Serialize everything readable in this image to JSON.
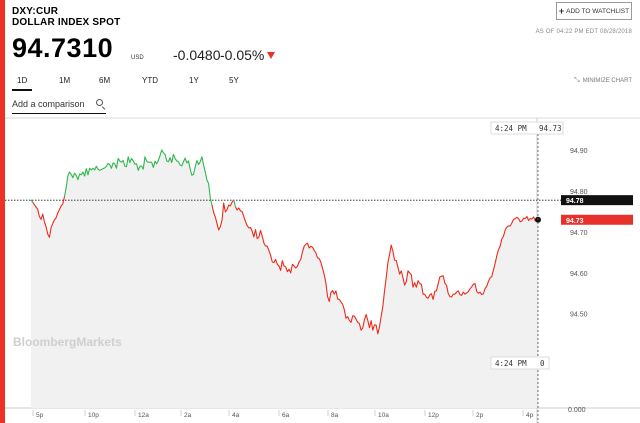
{
  "header": {
    "ticker": "DXY:CUR",
    "instrument_name": "DOLLAR INDEX SPOT",
    "watchlist_button": "ADD TO WATCHLIST",
    "price": "94.7310",
    "currency": "USD",
    "change": "-0.0480",
    "change_percent": "-0.05%",
    "as_of": "AS OF 04:22 PM EDT 08/28/2018"
  },
  "tabs": [
    {
      "label": "1D",
      "active": true
    },
    {
      "label": "1M",
      "active": false
    },
    {
      "label": "6M",
      "active": false
    },
    {
      "label": "YTD",
      "active": false
    },
    {
      "label": "1Y",
      "active": false
    },
    {
      "label": "5Y",
      "active": false
    }
  ],
  "minimize_label": "MINIMIZE CHART",
  "compare": {
    "label": "Add a comparison"
  },
  "watermark": "BloombergMarkets",
  "colors": {
    "accent": "#ee3124",
    "up": "#2db84b",
    "down": "#ee2a1b",
    "last_value_box": "#e8312a",
    "prev_close_box": "#111111"
  },
  "icons": {
    "watchlist": "plus-icon",
    "compare": "search-icon",
    "minimize": "minimize-icon",
    "change": "down-arrow-icon"
  },
  "chart_data": {
    "type": "line",
    "title": "",
    "xlabel": "",
    "ylabel": "",
    "x_ticks": [
      "5p",
      "10p",
      "12a",
      "2a",
      "4a",
      "6a",
      "8a",
      "10a",
      "12p",
      "2p",
      "4p"
    ],
    "y_ticks": [
      "94.90",
      "94.80",
      "94.70",
      "94.60",
      "94.50"
    ],
    "volume_axis_label": "0.000",
    "ylim": [
      94.405,
      94.98
    ],
    "previous_close": 94.779,
    "previous_close_label": "94.78",
    "last_value": 94.731,
    "last_value_label": "94.73",
    "crosshair_time": "4:24 PM",
    "crosshair_price": "94.73",
    "crosshair_volume": "0",
    "series": [
      {
        "values": [
          94.78,
          94.774,
          94.768,
          94.762,
          94.757,
          94.739,
          94.732,
          94.745,
          94.726,
          94.714,
          94.696,
          94.688,
          94.712,
          94.722,
          94.731,
          94.736,
          94.748,
          94.756,
          94.765,
          94.77,
          94.788,
          94.81,
          94.838,
          94.848,
          94.842,
          94.834,
          94.845,
          94.84,
          94.829,
          94.843,
          94.841,
          94.848,
          94.838,
          94.856,
          94.841,
          94.857,
          94.853,
          94.857,
          94.853,
          94.862,
          94.855,
          94.852,
          94.854,
          94.856,
          94.858,
          94.862,
          94.869,
          94.866,
          94.857,
          94.87,
          94.868,
          94.857,
          94.881,
          94.875,
          94.872,
          94.876,
          94.862,
          94.861,
          94.885,
          94.871,
          94.881,
          94.875,
          94.867,
          94.868,
          94.852,
          94.862,
          94.862,
          94.855,
          94.885,
          94.875,
          94.872,
          94.872,
          94.872,
          94.859,
          94.874,
          94.868,
          94.876,
          94.888,
          94.902,
          94.895,
          94.891,
          94.875,
          94.873,
          94.883,
          94.871,
          94.891,
          94.881,
          94.875,
          94.873,
          94.865,
          94.863,
          94.873,
          94.882,
          94.87,
          94.875,
          94.855,
          94.84,
          94.842,
          94.86,
          94.876,
          94.866,
          94.873,
          94.885,
          94.865,
          94.848,
          94.828,
          94.82,
          94.785,
          94.767,
          94.749,
          94.738,
          94.722,
          94.706,
          94.714,
          94.73,
          94.772,
          94.75,
          94.756,
          94.767,
          94.765,
          94.774,
          94.78,
          94.763,
          94.755,
          94.76,
          94.753,
          94.751,
          94.739,
          94.727,
          94.717,
          94.711,
          94.712,
          94.703,
          94.689,
          94.707,
          94.685,
          94.688,
          94.705,
          94.691,
          94.674,
          94.667,
          94.666,
          94.656,
          94.644,
          94.628,
          94.626,
          94.634,
          94.622,
          94.618,
          94.607,
          94.631,
          94.618,
          94.616,
          94.604,
          94.61,
          94.601,
          94.622,
          94.618,
          94.613,
          94.617,
          94.628,
          94.634,
          94.652,
          94.666,
          94.671,
          94.674,
          94.662,
          94.666,
          94.664,
          94.656,
          94.65,
          94.638,
          94.636,
          94.627,
          94.612,
          94.597,
          94.576,
          94.543,
          94.531,
          94.553,
          94.558,
          94.549,
          94.557,
          94.537,
          94.536,
          94.53,
          94.524,
          94.511,
          94.49,
          94.494,
          94.485,
          94.48,
          94.496,
          94.495,
          94.488,
          94.48,
          94.477,
          94.461,
          94.466,
          94.486,
          94.499,
          94.485,
          94.467,
          94.484,
          94.461,
          94.474,
          94.473,
          94.452,
          94.469,
          94.495,
          94.519,
          94.557,
          94.589,
          94.626,
          94.646,
          94.669,
          94.654,
          94.632,
          94.631,
          94.615,
          94.598,
          94.606,
          94.589,
          94.571,
          94.58,
          94.606,
          94.601,
          94.596,
          94.566,
          94.577,
          94.566,
          94.582,
          94.575,
          94.573,
          94.549,
          94.549,
          94.541,
          94.539,
          94.547,
          94.55,
          94.536,
          94.556,
          94.557,
          94.574,
          94.591,
          94.593,
          94.594,
          94.576,
          94.571,
          94.551,
          94.543,
          94.542,
          94.549,
          94.549,
          94.554,
          94.557,
          94.548,
          94.546,
          94.554,
          94.549,
          94.552,
          94.555,
          94.562,
          94.567,
          94.573,
          94.575,
          94.556,
          94.551,
          94.554,
          94.548,
          94.55,
          94.563,
          94.568,
          94.58,
          94.589,
          94.592,
          94.608,
          94.624,
          94.643,
          94.658,
          94.666,
          94.684,
          94.691,
          94.706,
          94.713,
          94.716,
          94.716,
          94.723,
          94.732,
          94.734,
          94.737,
          94.734,
          94.726,
          94.728,
          94.735,
          94.734,
          94.739,
          94.729,
          94.734,
          94.733,
          94.738,
          94.728,
          94.731
        ]
      }
    ]
  }
}
